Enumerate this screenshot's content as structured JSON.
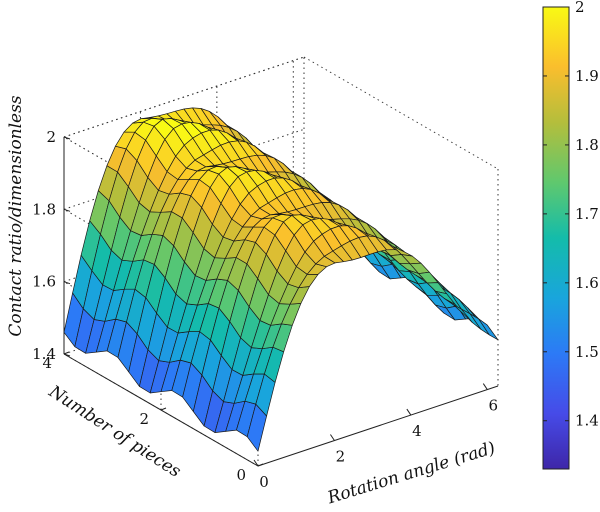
{
  "chart_data": {
    "type": "surface",
    "title": "",
    "xlabel": "Rotation angle (rad)",
    "ylabel": "Number of pieces",
    "zlabel": "Contact ratio/dimensionless",
    "xlim": [
      0,
      6.28
    ],
    "ylim": [
      0,
      4
    ],
    "zlim": [
      1.4,
      2.0
    ],
    "xticks": [
      "0",
      "2",
      "4",
      "6"
    ],
    "yticks": [
      "0",
      "2",
      "4"
    ],
    "zticks": [
      "1.4",
      "1.6",
      "1.8",
      "2"
    ],
    "colorbar": {
      "range": [
        1.33,
        2.0
      ],
      "ticks": [
        "1.4",
        "1.5",
        "1.6",
        "1.7",
        "1.8",
        "1.9",
        "2"
      ],
      "colormap": "parula"
    },
    "grid": true,
    "surface": {
      "x_samples": 28,
      "y_samples": 18,
      "z_at_x0": 1.46,
      "z_peak": 2.0,
      "x_peak": 2.1,
      "z_at_x_max": 1.56
    }
  }
}
